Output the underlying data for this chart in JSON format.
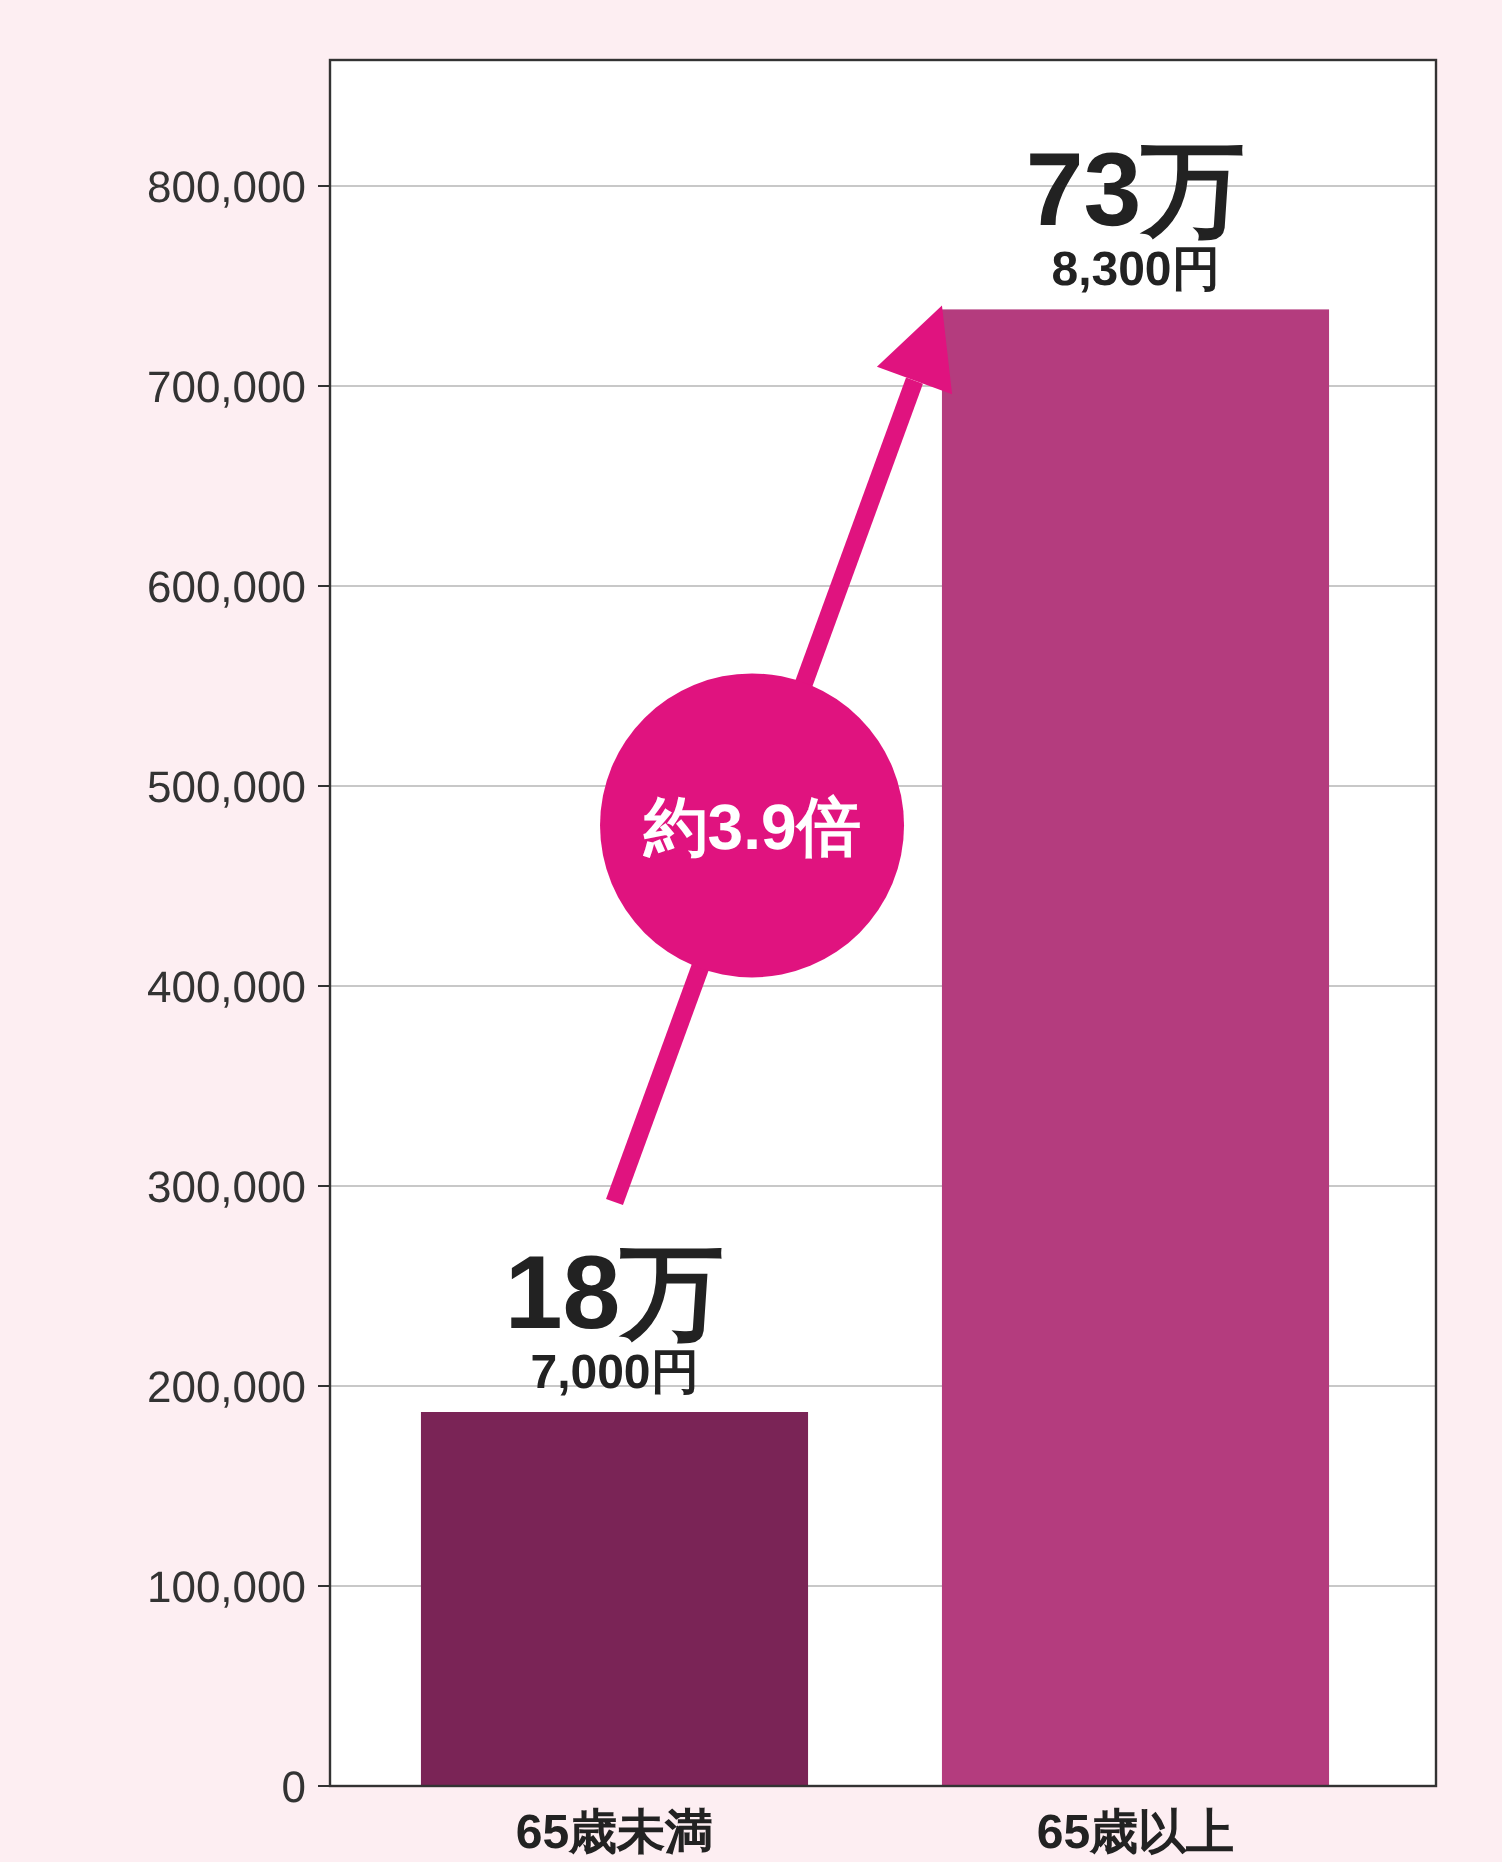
{
  "chart_data": {
    "type": "bar",
    "categories": [
      "65歳未満",
      "65歳以上"
    ],
    "values": [
      187000,
      738300
    ],
    "colors": [
      "#7a2456",
      "#b43c7e"
    ],
    "annotations": [
      {
        "text": "18万\n7,000円",
        "x": "65歳未満",
        "y": 187000
      },
      {
        "text": "73万\n8,300円",
        "x": "65歳以上",
        "y": 738300
      },
      "約3.9倍"
    ],
    "ylim": [
      0,
      863000
    ],
    "yticks": [
      0,
      {
        "value": 100000,
        "label": "100,000"
      },
      {
        "value": 200000,
        "label": "200,000"
      },
      {
        "value": 300000,
        "label": "300,000"
      },
      {
        "value": 400000,
        "label": "400,000"
      },
      {
        "value": 500000,
        "label": "500,000"
      },
      {
        "value": 600000,
        "label": "600,000"
      },
      {
        "value": 700000,
        "label": "700,000"
      },
      {
        "value": 800000,
        "label": "800,000"
      }
    ],
    "grid": "y"
  }
}
